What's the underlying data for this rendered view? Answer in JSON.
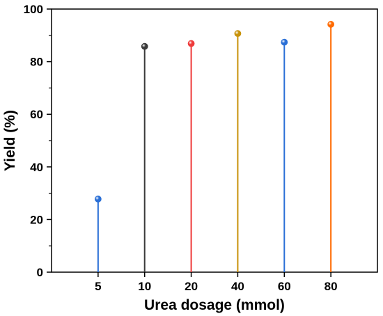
{
  "chart_data": {
    "type": "lollipop",
    "title": "",
    "xlabel": "Urea dosage (mmol)",
    "ylabel": "Yield (%)",
    "ylim": [
      0,
      100
    ],
    "yticks": [
      "0",
      "20",
      "40",
      "60",
      "80",
      "100"
    ],
    "grid": false,
    "categories": [
      "5",
      "10",
      "20",
      "40",
      "60",
      "80"
    ],
    "values": [
      27.8,
      85.8,
      86.9,
      90.7,
      87.4,
      94.2
    ],
    "colors": [
      "#2a6fd6",
      "#3a3a3a",
      "#ee3a3a",
      "#c8920a",
      "#2a6fd6",
      "#ff6a00"
    ]
  }
}
